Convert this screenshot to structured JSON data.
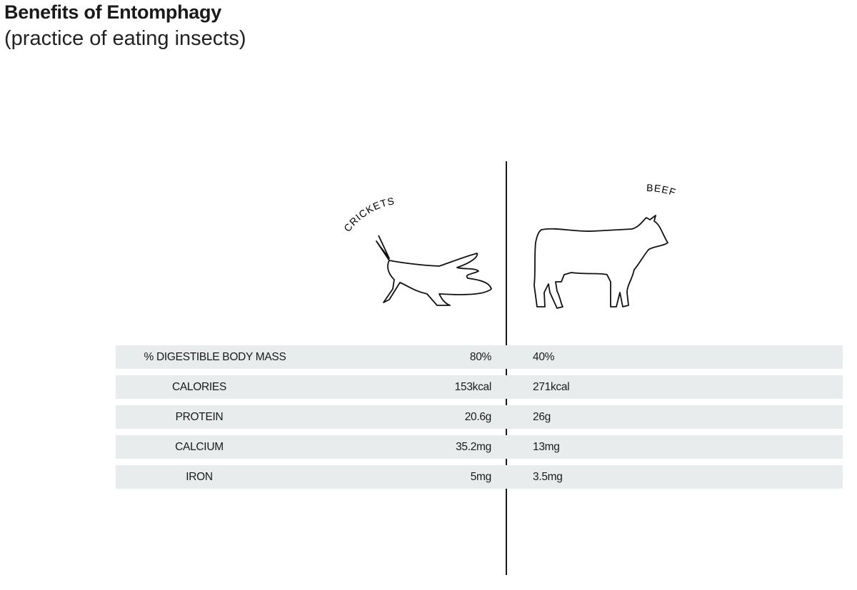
{
  "title": "Benefits of Entomphagy",
  "subtitle": "(practice of eating insects)",
  "chart_data": {
    "type": "table",
    "columns": [
      "CRICKETS",
      "BEEF"
    ],
    "column_icons": [
      "cricket-icon",
      "cow-icon"
    ],
    "rows": [
      {
        "label": "% DIGESTIBLE BODY MASS",
        "crickets": "80%",
        "beef": "40%"
      },
      {
        "label": "CALORIES",
        "crickets": "153kcal",
        "beef": "271kcal"
      },
      {
        "label": "PROTEIN",
        "crickets": "20.6g",
        "beef": "26g"
      },
      {
        "label": "CALCIUM",
        "crickets": "35.2mg",
        "beef": "13mg"
      },
      {
        "label": "IRON",
        "crickets": "5mg",
        "beef": "3.5mg"
      }
    ],
    "row_color": "#e9ecec"
  }
}
